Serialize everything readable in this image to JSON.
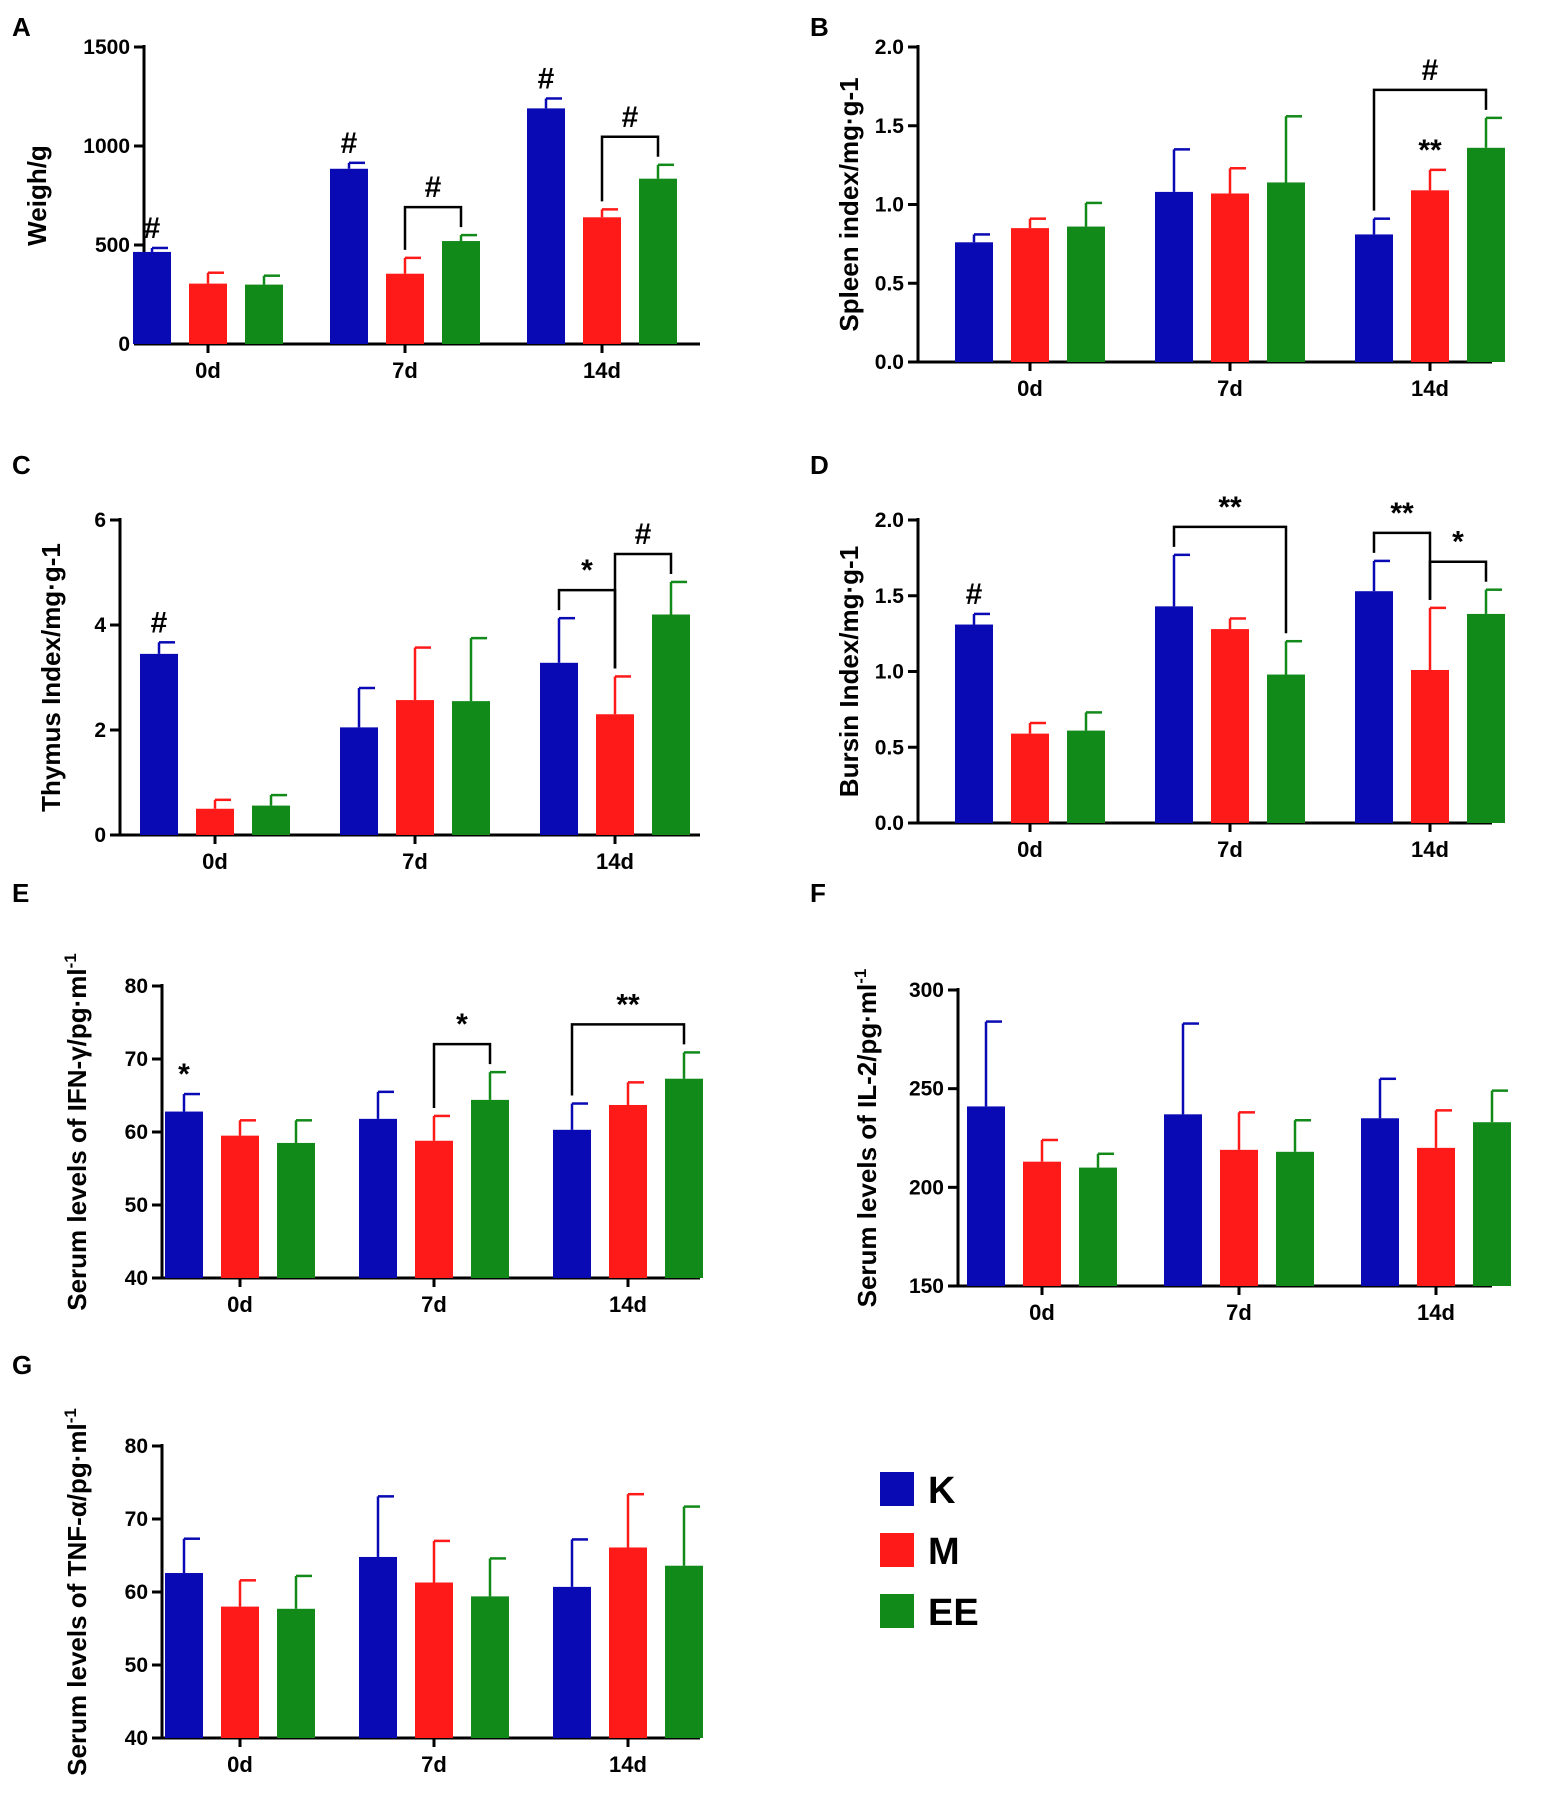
{
  "colors": {
    "K": "#0a0ab4",
    "M": "#ff1a1a",
    "EE": "#128a1a",
    "axis": "#000000"
  },
  "legend": [
    {
      "key": "K",
      "label": "K"
    },
    {
      "key": "M",
      "label": "M"
    },
    {
      "key": "EE",
      "label": "EE"
    }
  ],
  "chart_data": [
    {
      "id": "A",
      "panel_label": "A",
      "type": "bar",
      "ylabel": "Weigh/g",
      "ylim": [
        0,
        1500
      ],
      "yticks": [
        "0",
        "500",
        "1000",
        "1500"
      ],
      "categories": [
        "0d",
        "7d",
        "14d"
      ],
      "series": [
        {
          "name": "K",
          "values": [
            465,
            885,
            1190
          ],
          "errors": [
            20,
            30,
            50
          ]
        },
        {
          "name": "M",
          "values": [
            305,
            355,
            640
          ],
          "errors": [
            55,
            80,
            40
          ]
        },
        {
          "name": "EE",
          "values": [
            300,
            520,
            835
          ],
          "errors": [
            45,
            30,
            70
          ]
        }
      ],
      "annotations": [
        {
          "type": "mark",
          "text": "#",
          "group": 0,
          "series": 0
        },
        {
          "type": "mark",
          "text": "#",
          "group": 1,
          "series": 0
        },
        {
          "type": "mark",
          "text": "#",
          "group": 2,
          "series": 0
        },
        {
          "type": "bracket",
          "text": "#",
          "group": 1,
          "from": 1,
          "to": 2
        },
        {
          "type": "bracket",
          "text": "#",
          "group": 2,
          "from": 1,
          "to": 2
        }
      ]
    },
    {
      "id": "B",
      "panel_label": "B",
      "type": "bar",
      "ylabel": "Spleen index/mg·g-1",
      "ylim": [
        0,
        2.0
      ],
      "yticks": [
        "0.0",
        "0.5",
        "1.0",
        "1.5",
        "2.0"
      ],
      "categories": [
        "0d",
        "7d",
        "14d"
      ],
      "series": [
        {
          "name": "K",
          "values": [
            0.76,
            1.08,
            0.81
          ],
          "errors": [
            0.05,
            0.27,
            0.1
          ]
        },
        {
          "name": "M",
          "values": [
            0.85,
            1.07,
            1.09
          ],
          "errors": [
            0.06,
            0.16,
            0.13
          ]
        },
        {
          "name": "EE",
          "values": [
            0.86,
            1.14,
            1.36
          ],
          "errors": [
            0.15,
            0.42,
            0.19
          ]
        }
      ],
      "annotations": [
        {
          "type": "bracket",
          "text": "#",
          "group": 2,
          "from": 0,
          "to": 2
        },
        {
          "type": "mark",
          "text": "**",
          "group": 2,
          "series": 1
        }
      ]
    },
    {
      "id": "C",
      "panel_label": "C",
      "type": "bar",
      "ylabel": "Thymus Index/mg·g-1",
      "ylim": [
        0,
        6
      ],
      "yticks": [
        "0",
        "2",
        "4",
        "6"
      ],
      "categories": [
        "0d",
        "7d",
        "14d"
      ],
      "series": [
        {
          "name": "K",
          "values": [
            3.45,
            2.05,
            3.28
          ],
          "errors": [
            0.22,
            0.75,
            0.85
          ]
        },
        {
          "name": "M",
          "values": [
            0.5,
            2.57,
            2.3
          ],
          "errors": [
            0.17,
            1.0,
            0.72
          ]
        },
        {
          "name": "EE",
          "values": [
            0.56,
            2.55,
            4.2
          ],
          "errors": [
            0.2,
            1.2,
            0.62
          ]
        }
      ],
      "annotations": [
        {
          "type": "mark",
          "text": "#",
          "group": 0,
          "series": 0
        },
        {
          "type": "bracket",
          "text": "*",
          "group": 2,
          "from": 0,
          "to": 1
        },
        {
          "type": "bracket",
          "text": "#",
          "group": 2,
          "from": 1,
          "to": 2
        }
      ]
    },
    {
      "id": "D",
      "panel_label": "D",
      "type": "bar",
      "ylabel": "Bursin Index/mg·g-1",
      "ylim": [
        0,
        2.0
      ],
      "yticks": [
        "0.0",
        "0.5",
        "1.0",
        "1.5",
        "2.0"
      ],
      "categories": [
        "0d",
        "7d",
        "14d"
      ],
      "series": [
        {
          "name": "K",
          "values": [
            1.31,
            1.43,
            1.53
          ],
          "errors": [
            0.07,
            0.34,
            0.2
          ]
        },
        {
          "name": "M",
          "values": [
            0.59,
            1.28,
            1.01
          ],
          "errors": [
            0.07,
            0.07,
            0.41
          ]
        },
        {
          "name": "EE",
          "values": [
            0.61,
            0.98,
            1.38
          ],
          "errors": [
            0.12,
            0.22,
            0.16
          ]
        }
      ],
      "annotations": [
        {
          "type": "mark",
          "text": "#",
          "group": 0,
          "series": 0
        },
        {
          "type": "bracket",
          "text": "**",
          "group": 1,
          "from": 0,
          "to": 2
        },
        {
          "type": "bracket",
          "text": "**",
          "group": 2,
          "from": 0,
          "to": 1
        },
        {
          "type": "bracket",
          "text": "*",
          "group": 2,
          "from": 1,
          "to": 2
        }
      ]
    },
    {
      "id": "E",
      "panel_label": "E",
      "type": "bar",
      "ylabel": "Serum levels of IFN-γ/pg·ml",
      "ylabel_sup": "-1",
      "ylim": [
        40,
        80
      ],
      "yticks": [
        "40",
        "50",
        "60",
        "70",
        "80"
      ],
      "categories": [
        "0d",
        "7d",
        "14d"
      ],
      "series": [
        {
          "name": "K",
          "values": [
            62.8,
            61.8,
            60.3
          ],
          "errors": [
            2.4,
            3.7,
            3.6
          ]
        },
        {
          "name": "M",
          "values": [
            59.5,
            58.8,
            63.7
          ],
          "errors": [
            2.1,
            3.4,
            3.1
          ]
        },
        {
          "name": "EE",
          "values": [
            58.5,
            64.4,
            67.3
          ],
          "errors": [
            3.1,
            3.8,
            3.6
          ]
        }
      ],
      "annotations": [
        {
          "type": "mark",
          "text": "*",
          "group": 0,
          "series": 0
        },
        {
          "type": "bracket",
          "text": "*",
          "group": 1,
          "from": 1,
          "to": 2
        },
        {
          "type": "bracket",
          "text": "**",
          "group": 2,
          "from": 0,
          "to": 2
        }
      ]
    },
    {
      "id": "F",
      "panel_label": "F",
      "type": "bar",
      "ylabel": "Serum levels of IL-2/pg·ml",
      "ylabel_sup": "-1",
      "ylim": [
        150,
        300
      ],
      "yticks": [
        "150",
        "200",
        "250",
        "300"
      ],
      "categories": [
        "0d",
        "7d",
        "14d"
      ],
      "series": [
        {
          "name": "K",
          "values": [
            241,
            237,
            235
          ],
          "errors": [
            43,
            46,
            20
          ]
        },
        {
          "name": "M",
          "values": [
            213,
            219,
            220
          ],
          "errors": [
            11,
            19,
            19
          ]
        },
        {
          "name": "EE",
          "values": [
            210,
            218,
            233
          ],
          "errors": [
            7,
            16,
            16
          ]
        }
      ],
      "annotations": []
    },
    {
      "id": "G",
      "panel_label": "G",
      "type": "bar",
      "ylabel": "Serum levels of TNF-α/pg·ml",
      "ylabel_sup": "-1",
      "ylim": [
        40,
        80
      ],
      "yticks": [
        "40",
        "50",
        "60",
        "70",
        "80"
      ],
      "categories": [
        "0d",
        "7d",
        "14d"
      ],
      "series": [
        {
          "name": "K",
          "values": [
            62.6,
            64.8,
            60.7
          ],
          "errors": [
            4.7,
            8.3,
            6.5
          ]
        },
        {
          "name": "M",
          "values": [
            58.0,
            61.3,
            66.1
          ],
          "errors": [
            3.6,
            5.7,
            7.3
          ]
        },
        {
          "name": "EE",
          "values": [
            57.7,
            59.4,
            63.6
          ],
          "errors": [
            4.5,
            5.2,
            8.1
          ]
        }
      ],
      "annotations": []
    }
  ]
}
